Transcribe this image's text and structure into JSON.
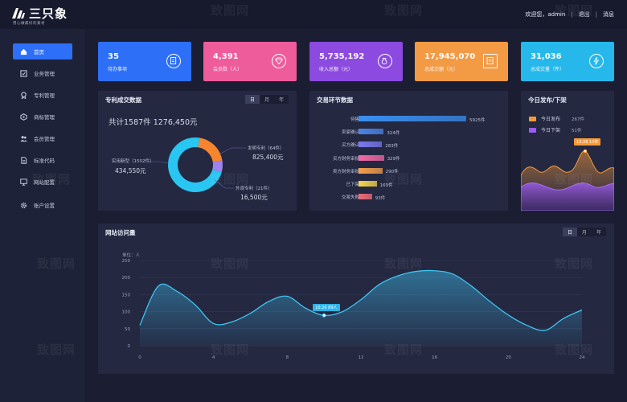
{
  "header": {
    "logo_text": "三只象",
    "logo_sub": "用心做最好的素材",
    "welcome": "欢迎您，admin",
    "separator": "|",
    "logout": "退出",
    "messages": "消息"
  },
  "sidebar": {
    "items": [
      {
        "label": "首页",
        "icon": "home-icon"
      },
      {
        "label": "业务管理",
        "icon": "checklist-icon"
      },
      {
        "label": "专利管理",
        "icon": "award-icon"
      },
      {
        "label": "商标管理",
        "icon": "badge-icon"
      },
      {
        "label": "会员管理",
        "icon": "users-icon"
      },
      {
        "label": "标准代码",
        "icon": "document-icon"
      },
      {
        "label": "网站配置",
        "icon": "monitor-icon"
      },
      {
        "label": "账户设置",
        "icon": "gear-icon"
      }
    ]
  },
  "stats": [
    {
      "value": "35",
      "label": "待办事项",
      "color": "#2d6ff7",
      "icon": "todo-icon"
    },
    {
      "value": "4,391",
      "label": "会员数（人）",
      "color": "#ee5c9b",
      "icon": "diamond-icon"
    },
    {
      "value": "5,735,192",
      "label": "收入总额（元）",
      "color": "#8c4ae0",
      "icon": "money-bag-icon"
    },
    {
      "value": "17,945,070",
      "label": "总成交额（元）",
      "color": "#f39a45",
      "icon": "certificate-icon"
    },
    {
      "value": "31,036",
      "label": "总成交量（件）",
      "color": "#26b8ea",
      "icon": "lightning-icon"
    }
  ],
  "patent_panel": {
    "title": "专利成交数据",
    "tabs": [
      "日",
      "月",
      "年"
    ],
    "total": "共计1587件 1276,450元",
    "segments": [
      {
        "label": "发明专利（64件）",
        "value": "825,400元",
        "share": 0.2,
        "color": "#f5852f"
      },
      {
        "label": "外观专利（21件）",
        "value": "16,500元",
        "share": 0.07,
        "color": "#9f82f0"
      },
      {
        "label": "实用新型（1502件）",
        "value": "434,550元",
        "share": 0.73,
        "color": "#29c6f2"
      }
    ]
  },
  "trade_panel": {
    "title": "交易环节数据",
    "rows": [
      {
        "label": "待售",
        "count": "5925件",
        "value": 5925,
        "color": "#3a8ff0"
      },
      {
        "label": "卖家确认",
        "count": "324件",
        "value": 324,
        "color": "#4b84e8"
      },
      {
        "label": "买方确认",
        "count": "283件",
        "value": 283,
        "color": "#7b79f0"
      },
      {
        "label": "买方财务审批",
        "count": "329件",
        "value": 329,
        "color": "#f46aa6"
      },
      {
        "label": "卖方财务审批",
        "count": "290件",
        "value": 290,
        "color": "#f6a04b"
      },
      {
        "label": "已下架",
        "count": "169件",
        "value": 169,
        "color": "#f6d64f"
      },
      {
        "label": "交易失败",
        "count": "93件",
        "value": 93,
        "color": "#f26d7a"
      }
    ]
  },
  "release_panel": {
    "title": "今日发布/下架",
    "legend": [
      {
        "label": "今日发布",
        "count": "267件",
        "color": "#f59a3a"
      },
      {
        "label": "今日下架",
        "count": "51件",
        "color": "#9b5cf0"
      }
    ],
    "tooltip": "13:26 13件"
  },
  "visits_panel": {
    "title": "网站访问量",
    "tabs": [
      "日",
      "月",
      "年"
    ],
    "unit": "单位：人",
    "tooltip": "10:26 89人"
  },
  "chart_data": {
    "type": "area",
    "title": "网站访问量",
    "ylabel": "单位：人",
    "xlim": [
      0,
      24
    ],
    "ylim": [
      0,
      250
    ],
    "x_ticks": [
      0,
      4,
      8,
      12,
      16,
      20,
      24
    ],
    "y_ticks": [
      0,
      50,
      100,
      150,
      200,
      250
    ],
    "grid": true,
    "x": [
      0,
      1,
      2,
      3,
      4,
      5,
      6,
      7,
      8,
      9,
      10,
      11,
      12,
      13,
      14,
      15,
      16,
      17,
      18,
      19,
      20,
      21,
      22,
      23,
      24
    ],
    "values": [
      60,
      175,
      160,
      120,
      65,
      70,
      95,
      130,
      145,
      110,
      89,
      100,
      135,
      180,
      205,
      218,
      220,
      210,
      175,
      130,
      90,
      60,
      45,
      80,
      105
    ],
    "highlight": {
      "x": 10,
      "y": 89,
      "label": "10:26 89人"
    }
  },
  "watermark": "致图网"
}
